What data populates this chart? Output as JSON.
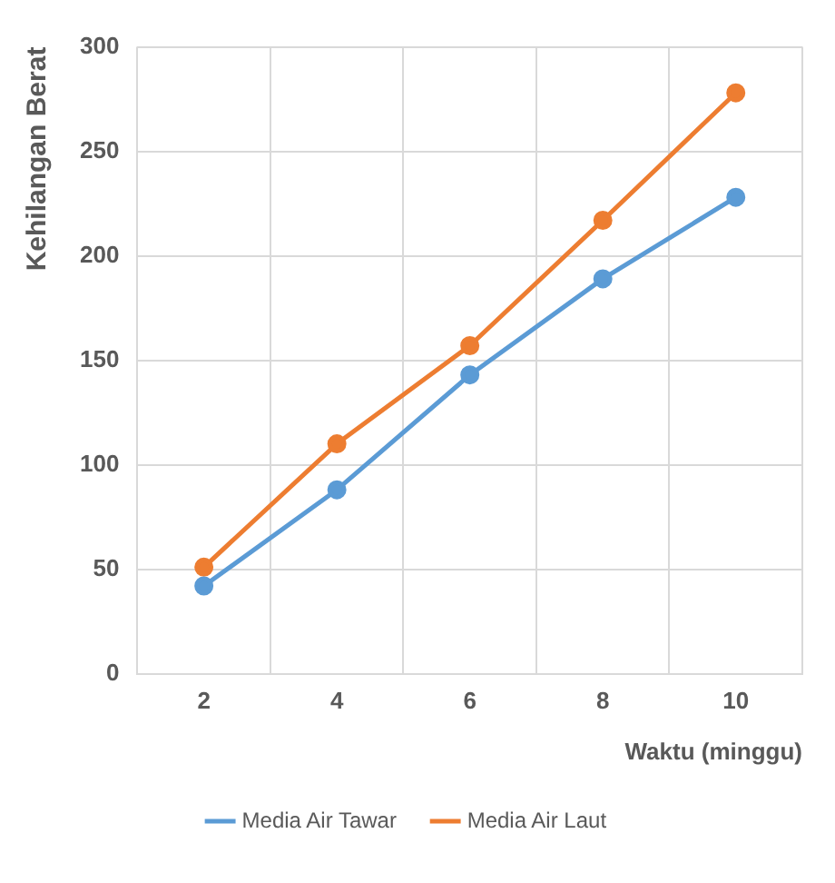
{
  "chart_data": {
    "type": "line",
    "xlabel": "Waktu (minggu)",
    "ylabel": "Kehilangan Berat",
    "categories": [
      "2",
      "4",
      "6",
      "8",
      "10"
    ],
    "series": [
      {
        "name": "Media Air Tawar",
        "color": "#5b9bd5",
        "values": [
          42,
          88,
          143,
          189,
          228
        ]
      },
      {
        "name": "Media Air Laut",
        "color": "#ed7d31",
        "values": [
          51,
          110,
          157,
          217,
          278
        ]
      }
    ],
    "ylim": [
      0,
      300
    ],
    "yticks": [
      0,
      50,
      100,
      150,
      200,
      250,
      300
    ],
    "grid": true,
    "legend": "bottom",
    "marker": "circle",
    "line_style": "solid"
  }
}
